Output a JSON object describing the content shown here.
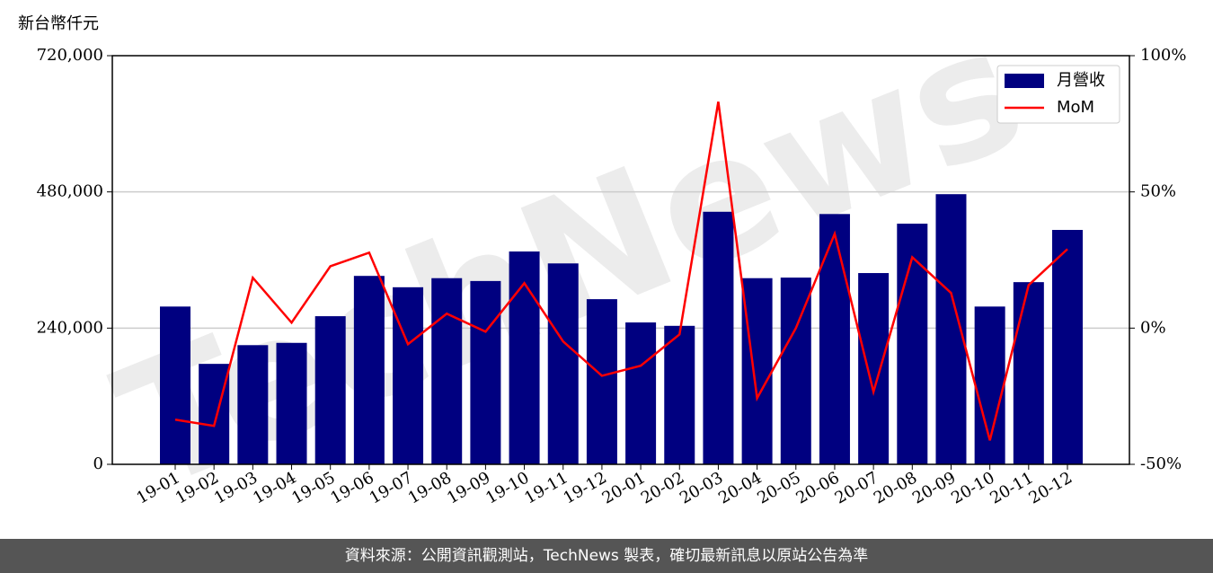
{
  "chart_data": {
    "type": "bar_line",
    "y_label": "新台幣仟元",
    "watermark": "TechNews",
    "footer": "資料來源：公開資訊觀測站，TechNews 製表，確切最新訊息以原站公告為準",
    "categories": [
      "19-01",
      "19-02",
      "19-03",
      "19-04",
      "19-05",
      "19-06",
      "19-07",
      "19-08",
      "19-09",
      "19-10",
      "19-11",
      "19-12",
      "20-01",
      "20-02",
      "20-03",
      "20-04",
      "20-05",
      "20-06",
      "20-07",
      "20-08",
      "20-09",
      "20-10",
      "20-11",
      "20-12"
    ],
    "series": [
      {
        "name": "月營收",
        "type": "bar",
        "color": "#000080",
        "values": [
          278000,
          177000,
          210000,
          214000,
          261000,
          332000,
          312000,
          328000,
          323000,
          375000,
          354000,
          291000,
          250000,
          244000,
          445000,
          328000,
          329000,
          441000,
          337000,
          424000,
          476000,
          278000,
          321000,
          413000
        ]
      },
      {
        "name": "MoM",
        "type": "line",
        "axis": "y2",
        "color": "#ff0000",
        "values": [
          -33.6,
          -35.9,
          18.5,
          2,
          22.7,
          27.7,
          -5.9,
          5.3,
          -1.3,
          16.5,
          -4.9,
          -17.5,
          -13.8,
          -2.3,
          83.1,
          -25.7,
          0,
          34.6,
          -23.4,
          26,
          12.9,
          -41.2,
          15.8,
          29
        ]
      }
    ],
    "ylim": [
      0,
      720000
    ],
    "yticks": [
      0,
      {
        "value": 240000,
        "label": "240,000"
      },
      {
        "value": 480000,
        "label": "480,000"
      },
      {
        "value": 720000,
        "label": "720,000"
      }
    ],
    "y2lim": [
      -50,
      100
    ],
    "y2ticks": [
      {
        "value": -50,
        "label": "-50%"
      },
      {
        "value": 0,
        "label": "0%"
      },
      {
        "value": 50,
        "label": "50%"
      },
      {
        "value": 100,
        "label": "100%"
      }
    ],
    "grid": true,
    "legend": "upper-right"
  }
}
